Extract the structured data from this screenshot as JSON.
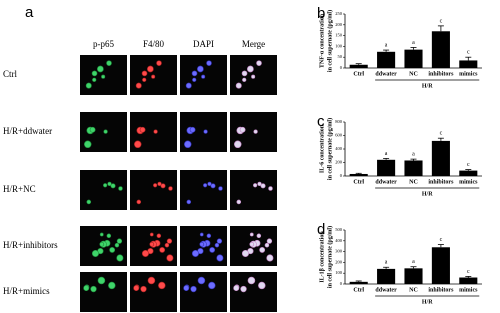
{
  "panel_a": {
    "label": "a",
    "columns": [
      "p-p65",
      "F4/80",
      "DAPI",
      "Merge"
    ],
    "rows": [
      "Ctrl",
      "H/R+ddwater",
      "H/R+NC",
      "H/R+inhibitors",
      "H/R+mimics"
    ]
  },
  "chart_data": [
    {
      "type": "bar",
      "panel": "b",
      "ylabel": [
        "TNF-α concentration",
        "in cell supernate (pg/ml)"
      ],
      "categories": [
        "Ctrl",
        "ddwater",
        "NC",
        "inhibitors",
        "mimics"
      ],
      "group_label": "H/R",
      "values": [
        15,
        75,
        85,
        170,
        35
      ],
      "errors": [
        5,
        8,
        10,
        25,
        15
      ],
      "annotations": [
        null,
        "a",
        "a",
        "c",
        "c"
      ],
      "ylim": [
        0,
        250
      ],
      "yticks": [
        0,
        50,
        100,
        150,
        200,
        250
      ],
      "color": "#000000"
    },
    {
      "type": "bar",
      "panel": "c",
      "ylabel": [
        "IL-6 concentration",
        "in cell supernate (pg/ml)"
      ],
      "categories": [
        "Ctrl",
        "ddwater",
        "NC",
        "inhibitors",
        "mimics"
      ],
      "group_label": "H/R",
      "values": [
        30,
        240,
        230,
        520,
        80
      ],
      "errors": [
        10,
        20,
        20,
        40,
        15
      ],
      "annotations": [
        null,
        "a",
        "a",
        "c",
        "c"
      ],
      "ylim": [
        0,
        800
      ],
      "yticks": [
        0,
        200,
        400,
        600,
        800
      ],
      "color": "#000000"
    },
    {
      "type": "bar",
      "panel": "d",
      "ylabel": [
        "IL-1β concentration",
        "in cell supernate (pg/ml)"
      ],
      "categories": [
        "Ctrl",
        "ddwater",
        "NC",
        "inhibitors",
        "mimics"
      ],
      "group_label": "H/R",
      "values": [
        20,
        140,
        145,
        340,
        60
      ],
      "errors": [
        8,
        15,
        15,
        25,
        10
      ],
      "annotations": [
        null,
        "a",
        "a",
        "c",
        "c"
      ],
      "ylim": [
        0,
        500
      ],
      "yticks": [
        0,
        100,
        200,
        300,
        400,
        500
      ],
      "color": "#000000"
    }
  ]
}
